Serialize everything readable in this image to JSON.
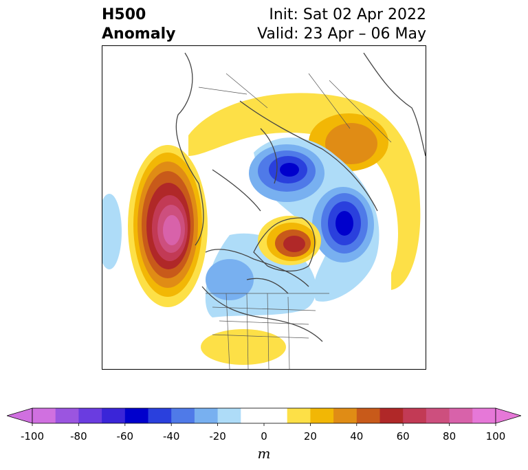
{
  "title": {
    "left_line1": "H500",
    "left_line2": "Anomaly",
    "right_line1": "Init: Sat 02 Apr 2022",
    "right_line2": "Valid: 23 Apr – 06 May"
  },
  "map": {
    "projection": "north-polar stereographic",
    "features": [
      "coastlines",
      "country borders",
      "US state borders"
    ],
    "anomaly_centers": [
      {
        "region": "NE Pacific / off US West Coast",
        "sign": "positive",
        "peak_m": 80
      },
      {
        "region": "Greenland",
        "sign": "positive",
        "peak_m": 60
      },
      {
        "region": "Central Eurasia",
        "sign": "positive",
        "peak_m": 40
      },
      {
        "region": "Arctic north of Scandinavia",
        "sign": "negative",
        "peak_m": -60
      },
      {
        "region": "Western Russia",
        "sign": "negative",
        "peak_m": -60
      },
      {
        "region": "Central Canada",
        "sign": "negative",
        "peak_m": -30
      },
      {
        "region": "Southern US",
        "sign": "positive",
        "peak_m": 20
      }
    ]
  },
  "colorbar": {
    "min": -100,
    "max": 100,
    "step": 10,
    "extend": "both",
    "ticks": [
      "-100",
      "-80",
      "-60",
      "-40",
      "-20",
      "0",
      "20",
      "40",
      "60",
      "80",
      "100"
    ],
    "units": "m",
    "colors": [
      "#d070e0",
      "#9b55e0",
      "#6a3ce0",
      "#3a25d8",
      "#0000cc",
      "#2a40dd",
      "#4f7ae8",
      "#78b0f0",
      "#aedcf8",
      "#ffffff",
      "#ffffff",
      "#fde047",
      "#f2b705",
      "#e08c15",
      "#c85a1a",
      "#b02828",
      "#c23a55",
      "#cd4f7e",
      "#d862aa",
      "#e678d8"
    ],
    "under_color": "#d070e0",
    "over_color": "#e678d8"
  }
}
